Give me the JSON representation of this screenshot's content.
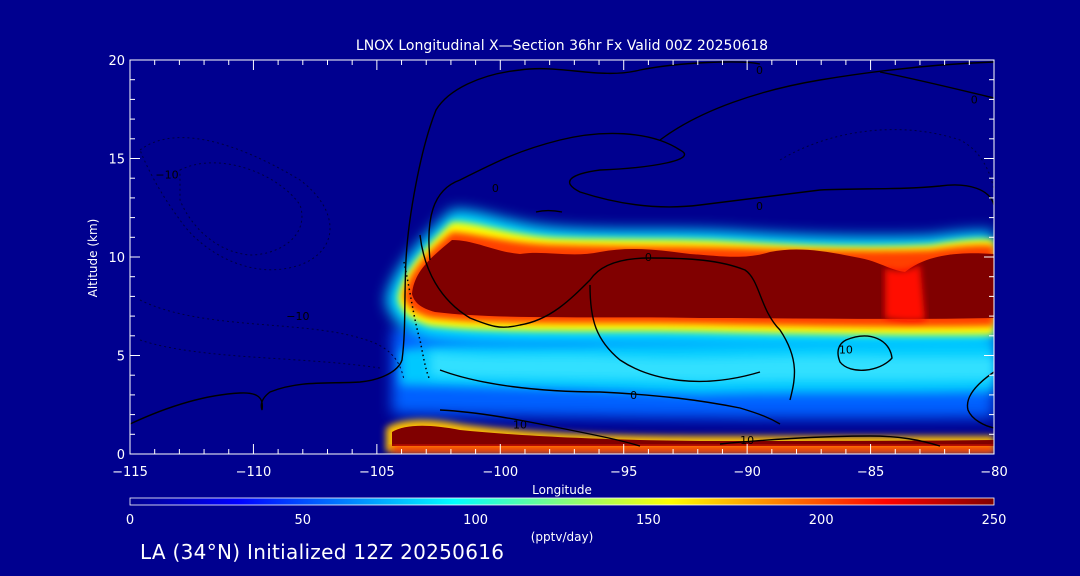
{
  "chart_data": {
    "type": "heatmap",
    "title": "LNOX Longitudinal X—Section 36hr  Fx Valid 00Z 20250618",
    "xlabel": "Longitude",
    "ylabel": "Altitude (km)",
    "xlim": [
      -115,
      -80
    ],
    "ylim": [
      0,
      20
    ],
    "x_ticks": [
      -115,
      -110,
      -105,
      -100,
      -95,
      -90,
      -85,
      -80
    ],
    "x_tick_labels": [
      "−115",
      "−110",
      "−105",
      "−100",
      "−95",
      "−90",
      "−85",
      "−80"
    ],
    "y_ticks": [
      0,
      5,
      10,
      15,
      20
    ],
    "y_tick_labels": [
      "0",
      "5",
      "10",
      "15",
      "20"
    ],
    "colorbar": {
      "min": 0,
      "max": 250,
      "ticks": [
        0,
        50,
        100,
        150,
        200,
        250
      ],
      "tick_labels": [
        "0",
        "50",
        "100",
        "150",
        "200",
        "250"
      ],
      "label": "(pptv/day)",
      "colors": [
        "#00008f",
        "#0000ff",
        "#0080ff",
        "#00ffff",
        "#80ff80",
        "#ffff00",
        "#ff8000",
        "#ff0000",
        "#800000"
      ]
    },
    "features": [
      {
        "feature": "upper maximum band",
        "lon_range": [
          -104.8,
          -80
        ],
        "alt_range": [
          7,
          11
        ],
        "value": 250
      },
      {
        "feature": "near-surface band",
        "lon_range": [
          -104,
          -80
        ],
        "alt_range": [
          0.5,
          1.5
        ],
        "value": 250
      },
      {
        "feature": "mid-level band",
        "lon_range": [
          -104,
          -80
        ],
        "alt_range": [
          3,
          6.5
        ],
        "value": 80
      },
      {
        "feature": "background",
        "value": 0
      }
    ],
    "contour_labels": [
      {
        "text": "0",
        "lon": -89.5,
        "alt": 19.5
      },
      {
        "text": "0",
        "lon": -80.8,
        "alt": 18.0
      },
      {
        "text": "0",
        "lon": -100.2,
        "alt": 13.5
      },
      {
        "text": "0",
        "lon": -89.5,
        "alt": 12.6
      },
      {
        "text": "0",
        "lon": -94,
        "alt": 10.0
      },
      {
        "text": "0",
        "lon": -94.6,
        "alt": 3.0
      },
      {
        "text": "−10",
        "lon": -113.5,
        "alt": 14.2
      },
      {
        "text": "−10",
        "lon": -108.2,
        "alt": 7.0
      },
      {
        "text": "10",
        "lon": -99.2,
        "alt": 1.5
      },
      {
        "text": "10",
        "lon": -90,
        "alt": 0.7
      },
      {
        "text": "10",
        "lon": -86,
        "alt": 5.3
      }
    ]
  },
  "footer_text": "LA (34°N) Initialized 12Z 20250616"
}
